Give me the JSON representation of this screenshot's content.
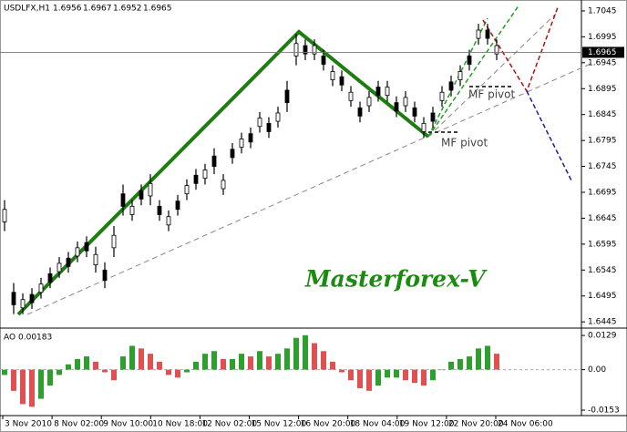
{
  "chart_data": {
    "type": "bars",
    "symbol": "USDLFX,H1",
    "header_values": [
      1.6956,
      1.6967,
      1.6952,
      1.6965
    ],
    "last_price": 1.6965,
    "bars": {
      "high": [
        1.668,
        1.652,
        1.65,
        1.651,
        1.653,
        1.655,
        1.657,
        1.658,
        1.66,
        1.661,
        1.659,
        1.656,
        1.663,
        1.671,
        1.668,
        1.671,
        1.673,
        1.668,
        1.666,
        1.669,
        1.672,
        1.674,
        1.675,
        1.678,
        1.673,
        1.679,
        1.681,
        1.682,
        1.685,
        1.684,
        1.686,
        1.691,
        1.7,
        1.699,
        1.699,
        1.697,
        1.694,
        1.693,
        1.69,
        1.687,
        1.689,
        1.691,
        1.691,
        1.688,
        1.689,
        1.687,
        1.684,
        1.686,
        1.69,
        1.692,
        1.694,
        1.697,
        1.702,
        1.702,
        1.699
      ],
      "low": [
        1.662,
        1.646,
        1.646,
        1.647,
        1.649,
        1.651,
        1.653,
        1.654,
        1.656,
        1.657,
        1.654,
        1.651,
        1.657,
        1.665,
        1.664,
        1.667,
        1.667,
        1.664,
        1.662,
        1.665,
        1.668,
        1.67,
        1.671,
        1.673,
        1.669,
        1.675,
        1.677,
        1.678,
        1.681,
        1.68,
        1.682,
        1.685,
        1.694,
        1.695,
        1.695,
        1.693,
        1.69,
        1.689,
        1.686,
        1.683,
        1.685,
        1.687,
        1.687,
        1.684,
        1.685,
        1.683,
        1.68,
        1.682,
        1.686,
        1.688,
        1.69,
        1.693,
        1.698,
        1.698,
        1.695
      ]
    },
    "ylim": [
      1.6433,
      1.7066
    ],
    "yticks": [
      1.7045,
      1.6995,
      1.6945,
      1.6895,
      1.6845,
      1.6795,
      1.6745,
      1.6695,
      1.6645,
      1.6595,
      1.6545,
      1.6495,
      1.6445
    ],
    "x_tick_labels": [
      "3 Nov 2010",
      "8 Nov 02:00",
      "9 Nov 10:00",
      "10 Nov 18:00",
      "12 Nov 02:00",
      "15 Nov 12:00",
      "16 Nov 20:00",
      "18 Nov 04:00",
      "19 Nov 12:00",
      "22 Nov 20:00",
      "24 Nov 06:00"
    ],
    "annotations": [
      "MF pivot",
      "MF pivot",
      "Masterforex-V"
    ],
    "indicator": {
      "type": "histogram",
      "name": "AO",
      "current": 0.00183,
      "values": [
        -0.002,
        -0.008,
        -0.013,
        -0.014,
        -0.011,
        -0.006,
        -0.002,
        0.002,
        0.004,
        0.005,
        0.003,
        -0.001,
        -0.004,
        0.005,
        0.009,
        0.008,
        0.006,
        0.003,
        -0.002,
        -0.003,
        -0.001,
        0.003,
        0.006,
        0.007,
        0.004,
        0.004,
        0.006,
        0.005,
        0.007,
        0.005,
        0.006,
        0.008,
        0.012,
        0.013,
        0.01,
        0.007,
        0.003,
        -0.001,
        -0.004,
        -0.007,
        -0.008,
        -0.006,
        -0.003,
        -0.003,
        -0.004,
        -0.005,
        -0.006,
        -0.004,
        0.0,
        0.003,
        0.004,
        0.005,
        0.008,
        0.009,
        0.006
      ],
      "up_color": "#2e9e2e",
      "down_color": "#e05050",
      "ylim": [
        -0.017,
        0.015
      ],
      "yticks": [
        0.0129,
        {
          "value": 0,
          "label": "0.00"
        },
        -0.0153
      ]
    }
  }
}
